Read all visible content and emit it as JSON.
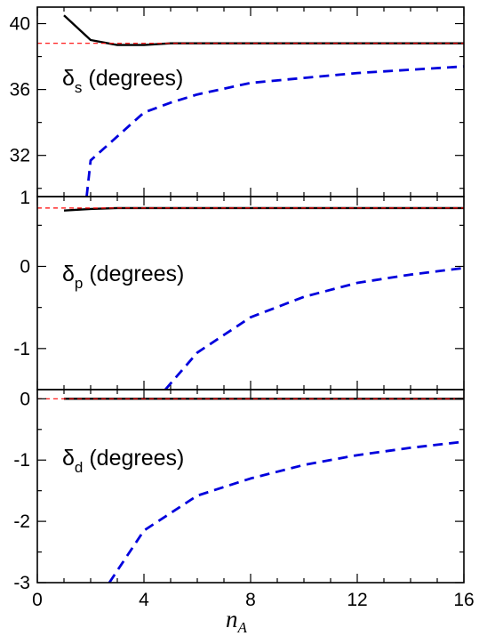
{
  "chart_data": [
    {
      "type": "line",
      "panel_label": {
        "symbol": "δ",
        "subscript": "s",
        "text": " (degrees)"
      },
      "xlim": [
        0,
        16
      ],
      "ylim": [
        29.5,
        41
      ],
      "yticks": [
        32,
        36,
        40
      ],
      "ytick_labels": [
        "32",
        "36",
        "40"
      ],
      "extra_ytick_label": "1",
      "series": [
        {
          "style": "solid",
          "color": "#000000",
          "x": [
            1,
            2,
            3,
            4,
            5,
            6,
            8,
            10,
            12,
            14,
            16
          ],
          "y": [
            40.5,
            39.0,
            38.7,
            38.7,
            38.8,
            38.8,
            38.8,
            38.8,
            38.8,
            38.8,
            38.8
          ]
        },
        {
          "style": "dashed",
          "color": "#0000dd",
          "x": [
            1.85,
            2,
            4,
            5,
            6,
            8,
            10,
            12,
            14,
            16
          ],
          "y": [
            29.5,
            31.7,
            34.6,
            35.2,
            35.7,
            36.4,
            36.7,
            37.0,
            37.2,
            37.4
          ]
        },
        {
          "style": "dashed-thin",
          "color": "#ff0000",
          "x": [
            0,
            16
          ],
          "y": [
            38.8,
            38.8
          ]
        }
      ]
    },
    {
      "type": "line",
      "panel_label": {
        "symbol": "δ",
        "subscript": "p",
        "text": " (degrees)"
      },
      "xlim": [
        0,
        16
      ],
      "ylim": [
        -1.5,
        0.85
      ],
      "yticks": [
        -1,
        0
      ],
      "ytick_labels": [
        "-1",
        "0"
      ],
      "series": [
        {
          "style": "solid",
          "color": "#000000",
          "x": [
            1,
            2,
            3,
            4,
            6,
            8,
            10,
            12,
            14,
            16
          ],
          "y": [
            0.68,
            0.7,
            0.71,
            0.71,
            0.71,
            0.71,
            0.71,
            0.71,
            0.71,
            0.71
          ]
        },
        {
          "style": "dashed",
          "color": "#0000dd",
          "x": [
            4.8,
            6,
            8,
            10,
            12,
            14,
            16
          ],
          "y": [
            -1.5,
            -1.05,
            -0.62,
            -0.37,
            -0.2,
            -0.1,
            -0.02
          ]
        },
        {
          "style": "dashed-thin",
          "color": "#ff0000",
          "x": [
            0,
            16
          ],
          "y": [
            0.71,
            0.71
          ]
        }
      ]
    },
    {
      "type": "line",
      "panel_label": {
        "symbol": "δ",
        "subscript": "d",
        "text": " (degrees)"
      },
      "xlim": [
        0,
        16
      ],
      "ylim": [
        -3,
        0.15
      ],
      "yticks": [
        -3,
        -2,
        -1,
        0
      ],
      "ytick_labels": [
        "-3",
        "-2",
        "-1",
        "0"
      ],
      "xticks": [
        0,
        4,
        8,
        12,
        16
      ],
      "xtick_labels": [
        "0",
        "4",
        "8",
        "12",
        "16"
      ],
      "xlabel": {
        "main": "n",
        "subscript": "A"
      },
      "series": [
        {
          "style": "solid",
          "color": "#000000",
          "x": [
            1,
            2,
            4,
            8,
            12,
            16
          ],
          "y": [
            0.0,
            0.0,
            0.0,
            0.0,
            0.0,
            0.0
          ]
        },
        {
          "style": "dashed",
          "color": "#0000dd",
          "x": [
            2.7,
            4,
            6,
            8,
            10,
            12,
            14,
            16
          ],
          "y": [
            -3.0,
            -2.15,
            -1.58,
            -1.3,
            -1.08,
            -0.92,
            -0.8,
            -0.7
          ]
        },
        {
          "style": "dashed-thin",
          "color": "#ff0000",
          "x": [
            0,
            16
          ],
          "y": [
            0.0,
            0.0
          ]
        }
      ]
    }
  ]
}
